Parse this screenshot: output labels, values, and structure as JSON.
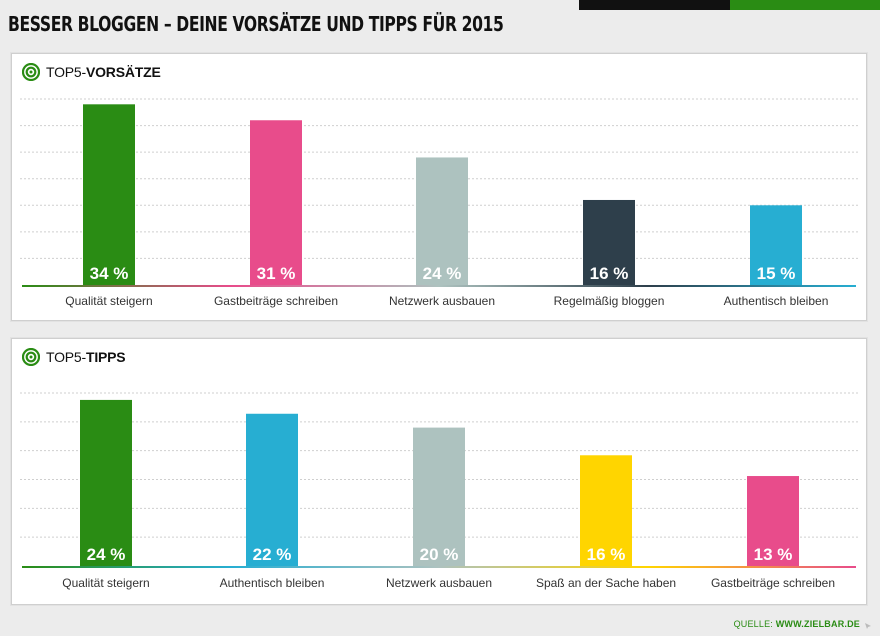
{
  "title": "BESSER BLOGGEN – DEINE VORSÄTZE UND TIPPS FÜR 2015",
  "source": {
    "label": "QUELLE:",
    "url": "WWW.ZIELBAR.DE"
  },
  "colors": {
    "green": "#2a8c14",
    "pink": "#e84c8b",
    "gray": "#adc2bf",
    "dark": "#2e3f4b",
    "blue": "#27aed2",
    "yellow": "#ffd500"
  },
  "panels": [
    {
      "title_prefix": "TOP5-",
      "title_bold": "VORSÄTZE",
      "icon": "target-icon"
    },
    {
      "title_prefix": "TOP5-",
      "title_bold": "TIPPS",
      "icon": "target-icon"
    }
  ],
  "chart_data": [
    {
      "type": "bar",
      "title": "TOP5-VORSÄTZE",
      "categories": [
        "Qualität steigern",
        "Gastbeiträge schreiben",
        "Netzwerk ausbauen",
        "Regelmäßig bloggen",
        "Authentisch bleiben"
      ],
      "values": [
        34,
        31,
        24,
        16,
        15
      ],
      "labels": [
        "34 %",
        "31 %",
        "24 %",
        "16 %",
        "15 %"
      ],
      "colors": [
        "#2a8c14",
        "#e84c8b",
        "#adc2bf",
        "#2e3f4b",
        "#27aed2"
      ],
      "ylim": [
        0,
        35
      ],
      "grid": true
    },
    {
      "type": "bar",
      "title": "TOP5-TIPPS",
      "categories": [
        "Qualität steigern",
        "Authentisch bleiben",
        "Netzwerk ausbauen",
        "Spaß an der Sache haben",
        "Gastbeiträge schreiben"
      ],
      "values": [
        24,
        22,
        20,
        16,
        13
      ],
      "labels": [
        "24 %",
        "22 %",
        "20 %",
        "16 %",
        "13 %"
      ],
      "colors": [
        "#2a8c14",
        "#27aed2",
        "#adc2bf",
        "#ffd500",
        "#e84c8b"
      ],
      "ylim": [
        0,
        25
      ],
      "grid": true
    }
  ]
}
